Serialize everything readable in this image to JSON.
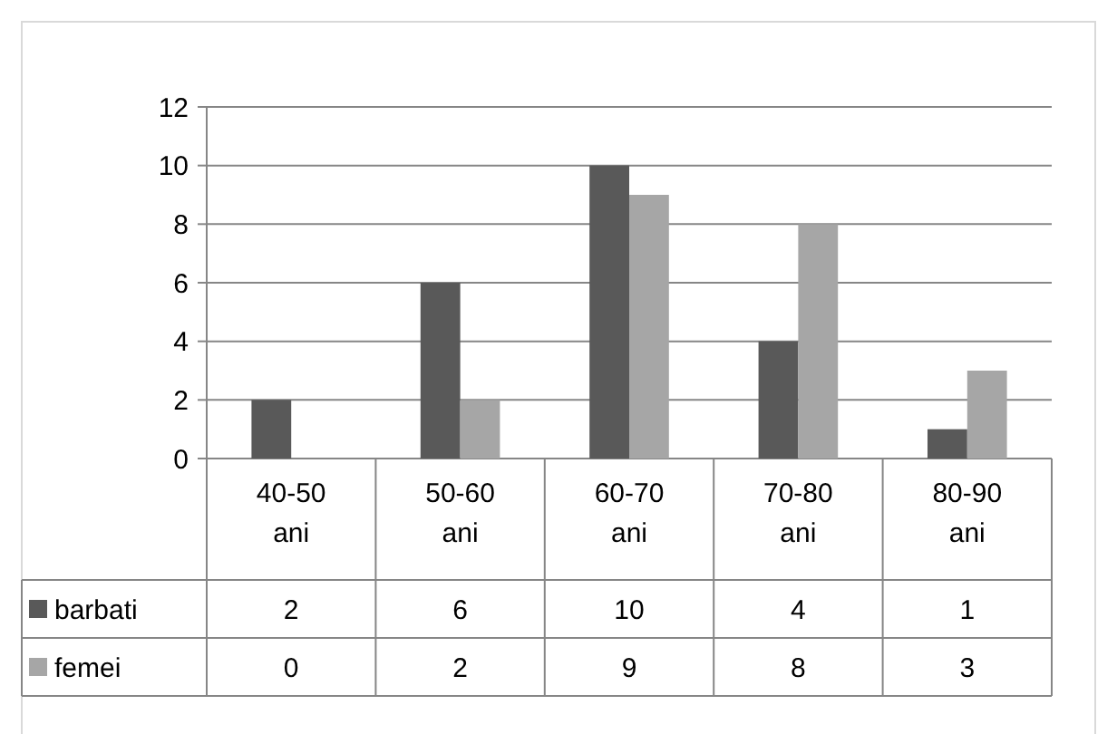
{
  "chart_data": {
    "type": "bar",
    "categories": [
      "40-50 ani",
      "50-60 ani",
      "60-70 ani",
      "70-80 ani",
      "80-90 ani"
    ],
    "series": [
      {
        "name": "barbati",
        "color": "#595959",
        "values": [
          2,
          6,
          10,
          4,
          1
        ]
      },
      {
        "name": "femei",
        "color": "#a6a6a6",
        "values": [
          0,
          2,
          9,
          8,
          3
        ]
      }
    ],
    "ylim": [
      0,
      12
    ],
    "yticks": [
      0,
      2,
      4,
      6,
      8,
      10,
      12
    ],
    "grid": "y",
    "legend": "bottom",
    "data_labels": true
  }
}
